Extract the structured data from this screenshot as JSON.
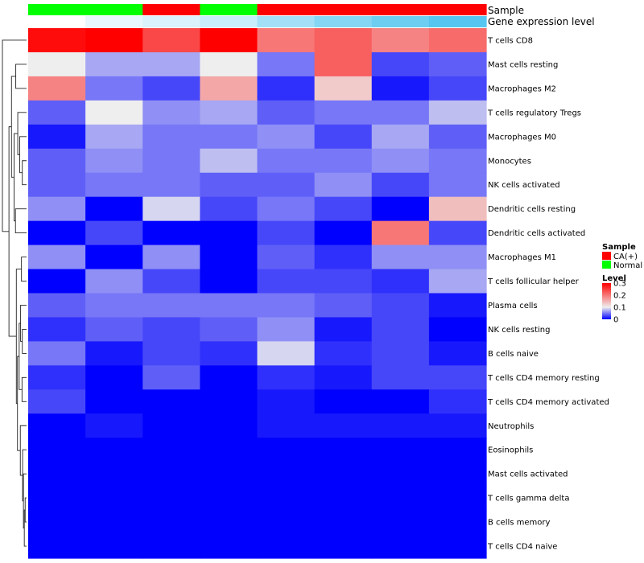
{
  "chart_data": {
    "type": "heatmap",
    "title": "",
    "annotation_labels": {
      "sample": "Sample",
      "level": "Gene expression level"
    },
    "columns": [
      {
        "sample": "Normal",
        "level": 0.0
      },
      {
        "sample": "Normal",
        "level": 0.03
      },
      {
        "sample": "CA(+)",
        "level": 0.05
      },
      {
        "sample": "Normal",
        "level": 0.07
      },
      {
        "sample": "CA(+)",
        "level": 0.12
      },
      {
        "sample": "CA(+)",
        "level": 0.16
      },
      {
        "sample": "CA(+)",
        "level": 0.19
      },
      {
        "sample": "CA(+)",
        "level": 0.22
      }
    ],
    "rows": [
      "T cells CD8",
      "Mast cells resting",
      "Macrophages M2",
      "T cells regulatory  Tregs",
      "Macrophages M0",
      "Monocytes",
      "NK cells activated",
      "Dendritic cells resting",
      "Dendritic cells activated",
      "Macrophages M1",
      "T cells follicular helper",
      "Plasma cells",
      "NK cells resting",
      "B cells naive",
      "T cells CD4 memory resting",
      "T cells CD4 memory activated",
      "Neutrophils",
      "Eosinophils",
      "Mast cells activated",
      "T cells gamma delta",
      "B cells memory",
      "T cells CD4 naive"
    ],
    "values": [
      [
        0.29,
        0.3,
        0.24,
        0.3,
        0.2,
        0.22,
        0.19,
        0.21
      ],
      [
        0.1,
        0.07,
        0.07,
        0.1,
        0.05,
        0.22,
        0.03,
        0.04
      ],
      [
        0.19,
        0.05,
        0.03,
        0.16,
        0.02,
        0.13,
        0.01,
        0.03
      ],
      [
        0.04,
        0.1,
        0.06,
        0.07,
        0.04,
        0.05,
        0.05,
        0.08
      ],
      [
        0.01,
        0.07,
        0.05,
        0.05,
        0.06,
        0.03,
        0.07,
        0.04
      ],
      [
        0.04,
        0.06,
        0.05,
        0.08,
        0.05,
        0.05,
        0.06,
        0.05
      ],
      [
        0.04,
        0.05,
        0.05,
        0.04,
        0.04,
        0.06,
        0.03,
        0.05
      ],
      [
        0.06,
        0.0,
        0.09,
        0.03,
        0.05,
        0.03,
        0.0,
        0.14
      ],
      [
        0.0,
        0.03,
        0.0,
        0.0,
        0.03,
        0.0,
        0.2,
        0.03
      ],
      [
        0.06,
        0.0,
        0.06,
        0.0,
        0.04,
        0.02,
        0.06,
        0.06
      ],
      [
        0.0,
        0.06,
        0.03,
        0.0,
        0.03,
        0.03,
        0.02,
        0.07
      ],
      [
        0.04,
        0.05,
        0.05,
        0.05,
        0.05,
        0.04,
        0.03,
        0.01
      ],
      [
        0.02,
        0.04,
        0.03,
        0.04,
        0.06,
        0.01,
        0.03,
        0.0
      ],
      [
        0.05,
        0.01,
        0.03,
        0.02,
        0.09,
        0.02,
        0.03,
        0.01
      ],
      [
        0.02,
        0.0,
        0.04,
        0.0,
        0.02,
        0.01,
        0.03,
        0.03
      ],
      [
        0.03,
        0.0,
        0.0,
        0.0,
        0.01,
        0.0,
        0.0,
        0.02
      ],
      [
        0.0,
        0.01,
        0.0,
        0.0,
        0.01,
        0.01,
        0.01,
        0.01
      ],
      [
        0.0,
        0.0,
        0.0,
        0.0,
        0.0,
        0.0,
        0.0,
        0.0
      ],
      [
        0.0,
        0.0,
        0.0,
        0.0,
        0.0,
        0.0,
        0.0,
        0.0
      ],
      [
        0.0,
        0.0,
        0.0,
        0.0,
        0.0,
        0.0,
        0.0,
        0.0
      ],
      [
        0.0,
        0.0,
        0.0,
        0.0,
        0.0,
        0.0,
        0.0,
        0.0
      ],
      [
        0.0,
        0.0,
        0.0,
        0.0,
        0.0,
        0.0,
        0.0,
        0.0
      ]
    ],
    "color_scale": {
      "min": 0,
      "mid": 0.1,
      "max": 0.3,
      "low": "#0000ff",
      "midcolor": "#eeeeee",
      "high": "#ff0000"
    },
    "level_scale": {
      "low": "#ffffff",
      "high": "#56c6f0"
    },
    "legend": {
      "position": "right",
      "sample_title": "Sample",
      "sample_entries": [
        {
          "label": "CA(+)",
          "color": "#ff0000"
        },
        {
          "label": "Normal",
          "color": "#00ff00"
        }
      ],
      "level_title": "Level",
      "level_ticks": [
        {
          "label": "0.3",
          "value": 0.3
        },
        {
          "label": "0.2",
          "value": 0.2
        },
        {
          "label": "0.1",
          "value": 0.1
        },
        {
          "label": "0",
          "value": 0.0
        }
      ]
    },
    "row_dendrogram": {
      "merges": [
        [
          0,
          [
            19,
            20
          ]
        ],
        [
          1,
          [
            21,
            "0"
          ]
        ],
        [
          2,
          [
            18,
            "1"
          ]
        ],
        [
          3,
          [
            17,
            "2"
          ]
        ],
        [
          4,
          [
            16,
            "3"
          ]
        ],
        [
          5,
          [
            14,
            15
          ]
        ],
        [
          6,
          [
            12,
            13
          ]
        ],
        [
          7,
          [
            11,
            "6"
          ]
        ],
        [
          8,
          [
            "7",
            "5"
          ]
        ],
        [
          9,
          [
            "8",
            "4"
          ]
        ],
        [
          10,
          [
            9,
            10
          ]
        ],
        [
          11,
          [
            "10",
            "9"
          ]
        ],
        [
          12,
          [
            5,
            6
          ]
        ],
        [
          13,
          [
            4,
            "12"
          ]
        ],
        [
          14,
          [
            3,
            "13"
          ]
        ],
        [
          15,
          [
            7,
            8
          ]
        ],
        [
          16,
          [
            "14",
            "15"
          ]
        ],
        [
          17,
          [
            1,
            2
          ]
        ],
        [
          18,
          [
            "17",
            "16"
          ]
        ],
        [
          19,
          [
            "18",
            "11"
          ]
        ],
        [
          20,
          [
            0,
            "19"
          ]
        ]
      ],
      "heights": [
        0.5,
        0.8,
        1.1,
        1.4,
        2.2,
        1.6,
        1.5,
        2.1,
        2.6,
        3.2,
        1.8,
        3.6,
        1.5,
        2.4,
        3.1,
        3.9,
        4.4,
        3.8,
        5.3,
        6.2,
        8.5
      ]
    }
  }
}
